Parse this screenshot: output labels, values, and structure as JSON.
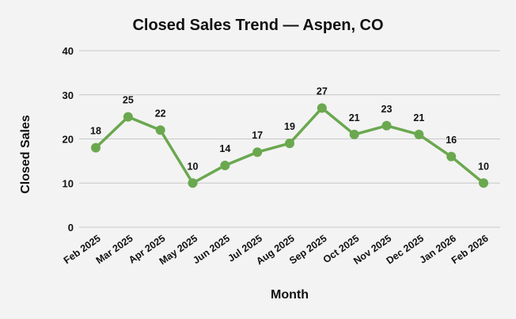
{
  "chart_data": {
    "type": "line",
    "title": "Closed Sales Trend — Aspen, CO",
    "xlabel": "Month",
    "ylabel": "Closed Sales",
    "categories": [
      "Feb 2025",
      "Mar 2025",
      "Apr 2025",
      "May 2025",
      "Jun 2025",
      "Jul 2025",
      "Aug 2025",
      "Sep 2025",
      "Oct 2025",
      "Nov 2025",
      "Dec 2025",
      "Jan 2026",
      "Feb 2026"
    ],
    "values": [
      18,
      25,
      22,
      10,
      14,
      17,
      19,
      27,
      21,
      23,
      21,
      16,
      10
    ],
    "ylim": [
      0,
      40
    ],
    "yticks": [
      0,
      10,
      20,
      30,
      40
    ],
    "grid": true,
    "data_labels": true,
    "legend": "none",
    "colors": {
      "line": "#6aa84f",
      "background": "#f3f3f3",
      "grid": "#c8c8c8"
    }
  }
}
